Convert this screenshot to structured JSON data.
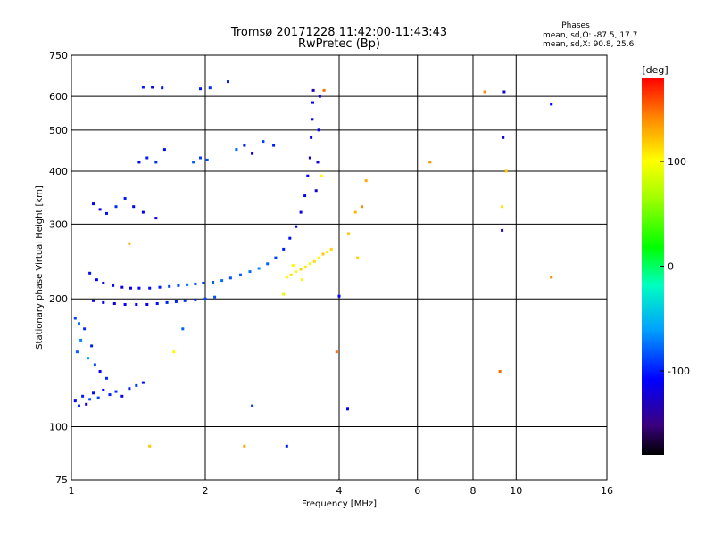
{
  "chart_data": {
    "type": "scatter",
    "title": "Tromsø 20171228 11:42:00-11:43:43",
    "subtitle": "RwPretec (Bp)",
    "phases": {
      "heading": "Phases",
      "line_o": "mean, sd,O: -87.5, 17.7",
      "line_x": "mean, sd,X:  90.8, 25.6"
    },
    "xlabel": "Frequency [MHz]",
    "ylabel": "Stationary phase Virtual Height [km]",
    "x_scale": "log",
    "y_scale": "log",
    "xlim": [
      1,
      16
    ],
    "ylim": [
      75,
      750
    ],
    "x_ticks": [
      1,
      2,
      4,
      6,
      8,
      10,
      16
    ],
    "x_tick_labels": [
      "1",
      "2",
      "4",
      "6",
      "8",
      "10",
      "16"
    ],
    "y_ticks": [
      75,
      100,
      200,
      300,
      400,
      500,
      600,
      750
    ],
    "y_tick_labels": [
      "75",
      "100",
      "200",
      "300",
      "400",
      "500",
      "600",
      "750"
    ],
    "grid": true,
    "colorbar": {
      "label": "[deg]",
      "range": [
        -180,
        180
      ],
      "ticks": [
        100,
        0,
        -100
      ],
      "tick_labels": [
        "100",
        "0",
        "-100"
      ]
    },
    "series": [
      {
        "values": [
          {
            "x": 1.02,
            "y": 115,
            "phase": -110
          },
          {
            "x": 1.04,
            "y": 112,
            "phase": -95
          },
          {
            "x": 1.06,
            "y": 118,
            "phase": -100
          },
          {
            "x": 1.08,
            "y": 113,
            "phase": -120
          },
          {
            "x": 1.1,
            "y": 116,
            "phase": -85
          },
          {
            "x": 1.12,
            "y": 120,
            "phase": -105
          },
          {
            "x": 1.15,
            "y": 117,
            "phase": -90
          },
          {
            "x": 1.18,
            "y": 122,
            "phase": -110
          },
          {
            "x": 1.22,
            "y": 119,
            "phase": -100
          },
          {
            "x": 1.26,
            "y": 121,
            "phase": -95
          },
          {
            "x": 1.3,
            "y": 118,
            "phase": -115
          },
          {
            "x": 1.35,
            "y": 123,
            "phase": -100
          },
          {
            "x": 1.4,
            "y": 125,
            "phase": -90
          },
          {
            "x": 1.45,
            "y": 127,
            "phase": -105
          },
          {
            "x": 1.03,
            "y": 150,
            "phase": -80
          },
          {
            "x": 1.05,
            "y": 160,
            "phase": -70
          },
          {
            "x": 1.07,
            "y": 170,
            "phase": -95
          },
          {
            "x": 1.09,
            "y": 145,
            "phase": -60
          },
          {
            "x": 1.11,
            "y": 155,
            "phase": -100
          },
          {
            "x": 1.13,
            "y": 140,
            "phase": -85
          },
          {
            "x": 1.16,
            "y": 135,
            "phase": -110
          },
          {
            "x": 1.2,
            "y": 130,
            "phase": -95
          },
          {
            "x": 1.02,
            "y": 180,
            "phase": -90
          },
          {
            "x": 1.04,
            "y": 175,
            "phase": -75
          },
          {
            "x": 1.12,
            "y": 198,
            "phase": -115
          },
          {
            "x": 1.18,
            "y": 196,
            "phase": -110
          },
          {
            "x": 1.25,
            "y": 195,
            "phase": -120
          },
          {
            "x": 1.32,
            "y": 194,
            "phase": -115
          },
          {
            "x": 1.4,
            "y": 194,
            "phase": -110
          },
          {
            "x": 1.48,
            "y": 194,
            "phase": -115
          },
          {
            "x": 1.56,
            "y": 195,
            "phase": -105
          },
          {
            "x": 1.64,
            "y": 196,
            "phase": -100
          },
          {
            "x": 1.72,
            "y": 197,
            "phase": -100
          },
          {
            "x": 1.8,
            "y": 198,
            "phase": -95
          },
          {
            "x": 1.9,
            "y": 199,
            "phase": -100
          },
          {
            "x": 2.0,
            "y": 200,
            "phase": -90
          },
          {
            "x": 2.1,
            "y": 202,
            "phase": -85
          },
          {
            "x": 1.1,
            "y": 230,
            "phase": -105
          },
          {
            "x": 1.14,
            "y": 222,
            "phase": -110
          },
          {
            "x": 1.18,
            "y": 218,
            "phase": -115
          },
          {
            "x": 1.24,
            "y": 215,
            "phase": -110
          },
          {
            "x": 1.3,
            "y": 213,
            "phase": -120
          },
          {
            "x": 1.36,
            "y": 212,
            "phase": -115
          },
          {
            "x": 1.42,
            "y": 212,
            "phase": -110
          },
          {
            "x": 1.5,
            "y": 212,
            "phase": -105
          },
          {
            "x": 1.58,
            "y": 213,
            "phase": -100
          },
          {
            "x": 1.66,
            "y": 214,
            "phase": -90
          },
          {
            "x": 1.74,
            "y": 215,
            "phase": -85
          },
          {
            "x": 1.82,
            "y": 216,
            "phase": -80
          },
          {
            "x": 1.9,
            "y": 217,
            "phase": -85
          },
          {
            "x": 1.98,
            "y": 218,
            "phase": -90
          },
          {
            "x": 2.08,
            "y": 219,
            "phase": -80
          },
          {
            "x": 2.18,
            "y": 221,
            "phase": -75
          },
          {
            "x": 2.28,
            "y": 224,
            "phase": -85
          },
          {
            "x": 2.4,
            "y": 228,
            "phase": -80
          },
          {
            "x": 2.52,
            "y": 232,
            "phase": -75
          },
          {
            "x": 2.64,
            "y": 236,
            "phase": -70
          },
          {
            "x": 2.76,
            "y": 242,
            "phase": -80
          },
          {
            "x": 2.88,
            "y": 250,
            "phase": -90
          },
          {
            "x": 3.0,
            "y": 262,
            "phase": -100
          },
          {
            "x": 3.1,
            "y": 278,
            "phase": -105
          },
          {
            "x": 3.2,
            "y": 296,
            "phase": -110
          },
          {
            "x": 3.28,
            "y": 320,
            "phase": -115
          },
          {
            "x": 3.35,
            "y": 350,
            "phase": -110
          },
          {
            "x": 3.4,
            "y": 390,
            "phase": -115
          },
          {
            "x": 3.44,
            "y": 430,
            "phase": -120
          },
          {
            "x": 3.46,
            "y": 480,
            "phase": -110
          },
          {
            "x": 3.48,
            "y": 530,
            "phase": -105
          },
          {
            "x": 3.49,
            "y": 580,
            "phase": -110
          },
          {
            "x": 3.5,
            "y": 620,
            "phase": -130
          },
          {
            "x": 3.55,
            "y": 360,
            "phase": -125
          },
          {
            "x": 3.58,
            "y": 420,
            "phase": -120
          },
          {
            "x": 3.6,
            "y": 500,
            "phase": -115
          },
          {
            "x": 3.62,
            "y": 600,
            "phase": -120
          },
          {
            "x": 1.12,
            "y": 335,
            "phase": -110
          },
          {
            "x": 1.16,
            "y": 325,
            "phase": -115
          },
          {
            "x": 1.2,
            "y": 318,
            "phase": -105
          },
          {
            "x": 1.26,
            "y": 330,
            "phase": -95
          },
          {
            "x": 1.32,
            "y": 345,
            "phase": -100
          },
          {
            "x": 1.38,
            "y": 330,
            "phase": -110
          },
          {
            "x": 1.45,
            "y": 320,
            "phase": -115
          },
          {
            "x": 1.55,
            "y": 310,
            "phase": -110
          },
          {
            "x": 1.42,
            "y": 420,
            "phase": -110
          },
          {
            "x": 1.48,
            "y": 430,
            "phase": -100
          },
          {
            "x": 1.55,
            "y": 420,
            "phase": -95
          },
          {
            "x": 1.62,
            "y": 450,
            "phase": -105
          },
          {
            "x": 1.88,
            "y": 420,
            "phase": -80
          },
          {
            "x": 1.95,
            "y": 430,
            "phase": -90
          },
          {
            "x": 2.02,
            "y": 425,
            "phase": -85
          },
          {
            "x": 2.35,
            "y": 450,
            "phase": -80
          },
          {
            "x": 2.45,
            "y": 460,
            "phase": -100
          },
          {
            "x": 2.55,
            "y": 440,
            "phase": -110
          },
          {
            "x": 2.7,
            "y": 470,
            "phase": -90
          },
          {
            "x": 2.85,
            "y": 460,
            "phase": -100
          },
          {
            "x": 1.45,
            "y": 630,
            "phase": -100
          },
          {
            "x": 1.52,
            "y": 630,
            "phase": -110
          },
          {
            "x": 1.6,
            "y": 628,
            "phase": -105
          },
          {
            "x": 1.95,
            "y": 625,
            "phase": -100
          },
          {
            "x": 2.05,
            "y": 628,
            "phase": -95
          },
          {
            "x": 2.25,
            "y": 650,
            "phase": -100
          },
          {
            "x": 9.4,
            "y": 615,
            "phase": -120
          },
          {
            "x": 9.3,
            "y": 290,
            "phase": -130
          },
          {
            "x": 12.0,
            "y": 575,
            "phase": -110
          },
          {
            "x": 9.35,
            "y": 480,
            "phase": -115
          },
          {
            "x": 3.05,
            "y": 90,
            "phase": -100
          },
          {
            "x": 4.18,
            "y": 110,
            "phase": -110
          },
          {
            "x": 1.78,
            "y": 170,
            "phase": -80
          },
          {
            "x": 4.0,
            "y": 203,
            "phase": -110
          },
          {
            "x": 2.55,
            "y": 112,
            "phase": -90
          }
        ]
      },
      {
        "values": [
          {
            "x": 3.05,
            "y": 225,
            "phase": 105
          },
          {
            "x": 3.12,
            "y": 228,
            "phase": 110
          },
          {
            "x": 3.2,
            "y": 232,
            "phase": 100
          },
          {
            "x": 3.28,
            "y": 235,
            "phase": 115
          },
          {
            "x": 3.36,
            "y": 238,
            "phase": 108
          },
          {
            "x": 3.44,
            "y": 242,
            "phase": 95
          },
          {
            "x": 3.52,
            "y": 245,
            "phase": 112
          },
          {
            "x": 3.6,
            "y": 250,
            "phase": 100
          },
          {
            "x": 3.68,
            "y": 255,
            "phase": 120
          },
          {
            "x": 3.76,
            "y": 258,
            "phase": 105
          },
          {
            "x": 3.84,
            "y": 262,
            "phase": 115
          },
          {
            "x": 3.15,
            "y": 240,
            "phase": 100
          },
          {
            "x": 3.3,
            "y": 222,
            "phase": 95
          },
          {
            "x": 4.2,
            "y": 285,
            "phase": 120
          },
          {
            "x": 4.35,
            "y": 320,
            "phase": 125
          },
          {
            "x": 4.5,
            "y": 330,
            "phase": 140
          },
          {
            "x": 4.6,
            "y": 380,
            "phase": 130
          },
          {
            "x": 4.4,
            "y": 250,
            "phase": 115
          },
          {
            "x": 8.5,
            "y": 615,
            "phase": 140
          },
          {
            "x": 6.4,
            "y": 420,
            "phase": 135
          },
          {
            "x": 9.5,
            "y": 400,
            "phase": 120
          },
          {
            "x": 9.3,
            "y": 330,
            "phase": 110
          },
          {
            "x": 9.2,
            "y": 135,
            "phase": 150
          },
          {
            "x": 12.0,
            "y": 225,
            "phase": 140
          },
          {
            "x": 3.65,
            "y": 390,
            "phase": 100
          },
          {
            "x": 3.7,
            "y": 620,
            "phase": 150
          },
          {
            "x": 3.0,
            "y": 205,
            "phase": 90
          },
          {
            "x": 1.5,
            "y": 90,
            "phase": 120
          },
          {
            "x": 2.45,
            "y": 90,
            "phase": 130
          },
          {
            "x": 3.95,
            "y": 150,
            "phase": 150
          },
          {
            "x": 1.7,
            "y": 150,
            "phase": 100
          },
          {
            "x": 1.35,
            "y": 270,
            "phase": 130
          }
        ]
      }
    ]
  }
}
